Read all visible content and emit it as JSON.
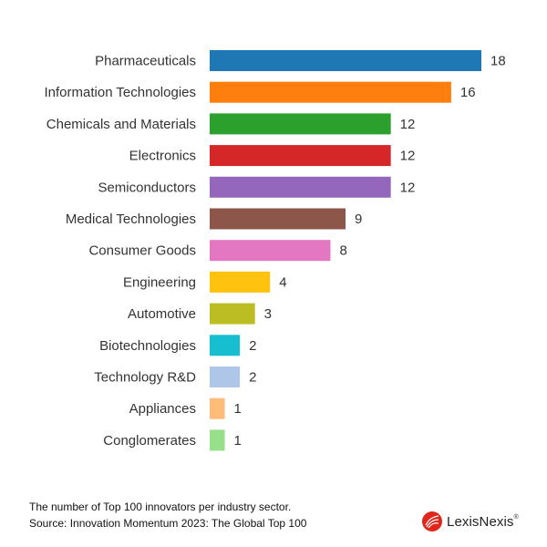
{
  "chart_data": {
    "type": "bar",
    "orientation": "horizontal",
    "categories": [
      "Pharmaceuticals",
      "Information Technologies",
      "Chemicals and Materials",
      "Electronics",
      "Semiconductors",
      "Medical Technologies",
      "Consumer Goods",
      "Engineering",
      "Automotive",
      "Biotechnologies",
      "Technology R&D",
      "Appliances",
      "Conglomerates"
    ],
    "values": [
      18,
      16,
      12,
      12,
      12,
      9,
      8,
      4,
      3,
      2,
      2,
      1,
      1
    ],
    "value_labels": [
      "18",
      "16",
      "12",
      "12",
      "12",
      "9",
      "8",
      "4",
      "3",
      "2",
      "2",
      "1",
      "1"
    ],
    "colors": [
      "#1f77b4",
      "#ff7f0e",
      "#2ca02c",
      "#d62728",
      "#9467bd",
      "#8c564b",
      "#e377c2",
      "#ffc20e",
      "#bcbd22",
      "#17becf",
      "#aec7e8",
      "#ffbb78",
      "#98df8a"
    ],
    "xlim": [
      0,
      18
    ],
    "grid": false,
    "title": "",
    "xlabel": "",
    "ylabel": ""
  },
  "footer": {
    "line1": "The number of Top 100 innovators per industry sector.",
    "line2": "Source: Innovation Momentum 2023: The Global Top 100"
  },
  "brand": {
    "name": "LexisNexis",
    "mark": "®",
    "icon": "lexisnexis-logo-icon",
    "color": "#e1251b"
  }
}
